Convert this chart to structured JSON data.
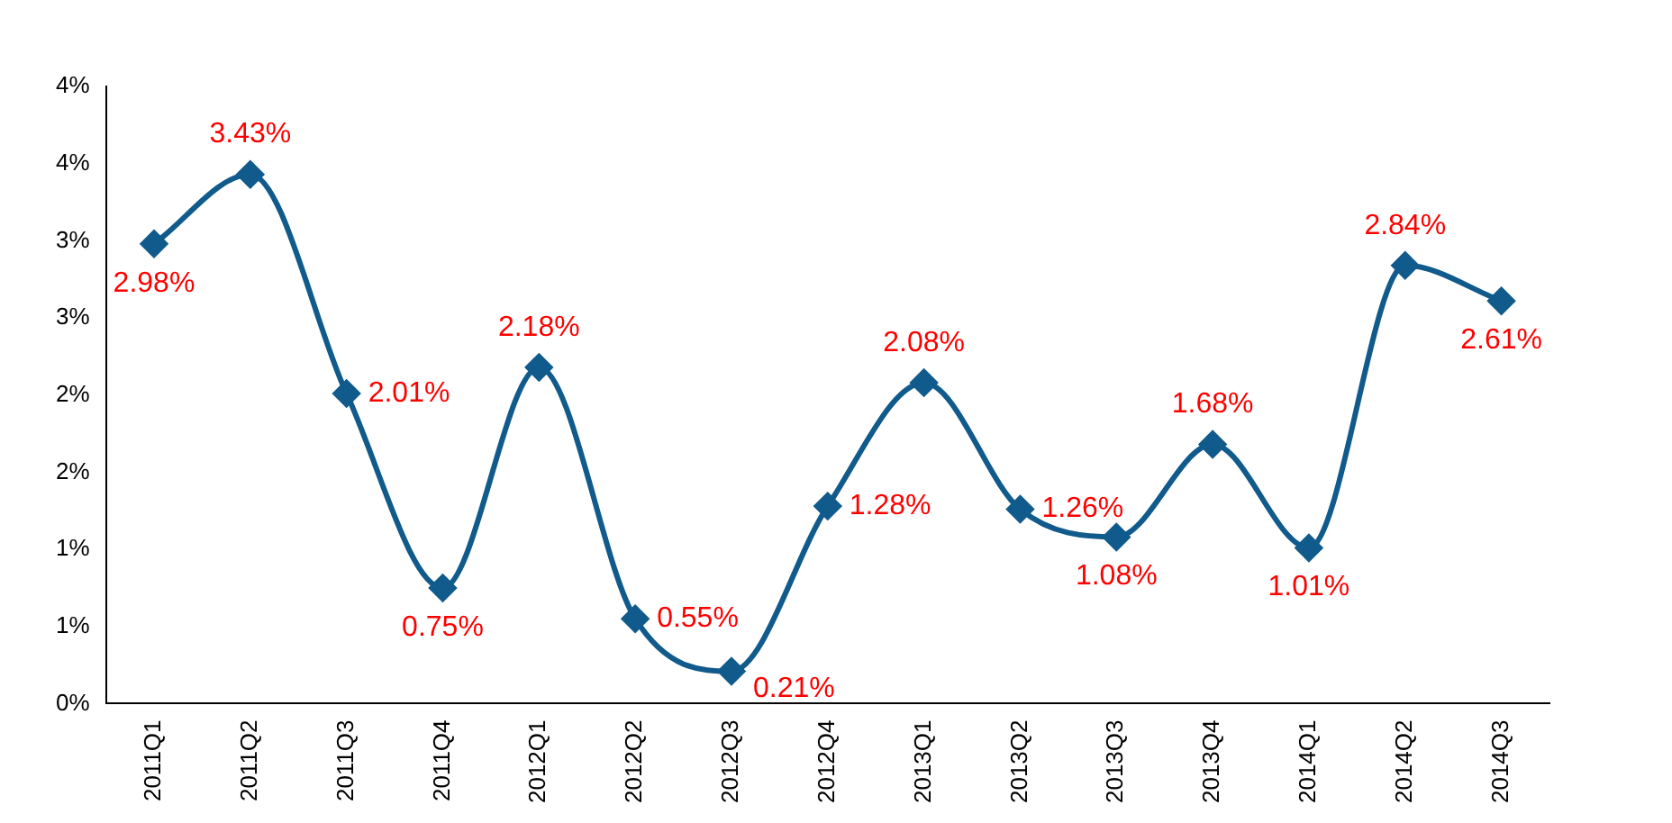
{
  "chart_data": {
    "type": "line",
    "categories": [
      "2011Q1",
      "2011Q2",
      "2011Q3",
      "2011Q4",
      "2012Q1",
      "2012Q2",
      "2012Q3",
      "2012Q4",
      "2013Q1",
      "2013Q2",
      "2013Q3",
      "2013Q4",
      "2014Q1",
      "2014Q2",
      "2014Q3"
    ],
    "series": [
      {
        "color": "#105a8c",
        "values": [
          2.98,
          3.43,
          2.01,
          0.75,
          2.18,
          0.55,
          0.21,
          1.28,
          2.08,
          1.26,
          1.08,
          1.68,
          1.01,
          2.84,
          2.61
        ]
      }
    ],
    "ylim": [
      0,
      4
    ],
    "yticks": [
      {
        "value": 0,
        "label": "0%"
      },
      {
        "value": 0.5,
        "label": "1%"
      },
      {
        "value": 1,
        "label": "1%"
      },
      {
        "value": 1.5,
        "label": "2%"
      },
      {
        "value": 2,
        "label": "2%"
      },
      {
        "value": 2.5,
        "label": "3%"
      },
      {
        "value": 3,
        "label": "3%"
      },
      {
        "value": 3.5,
        "label": "4%"
      },
      {
        "value": 4,
        "label": "4%"
      }
    ],
    "value_labels": [
      "2.98%",
      "3.43%",
      "2.01%",
      "0.75%",
      "2.18%",
      "0.55%",
      "0.21%",
      "1.28%",
      "2.08%",
      "1.26%",
      "1.08%",
      "1.68%",
      "1.01%",
      "2.84%",
      "2.61%"
    ],
    "marker": "diamond",
    "grid": false,
    "legend": false
  }
}
